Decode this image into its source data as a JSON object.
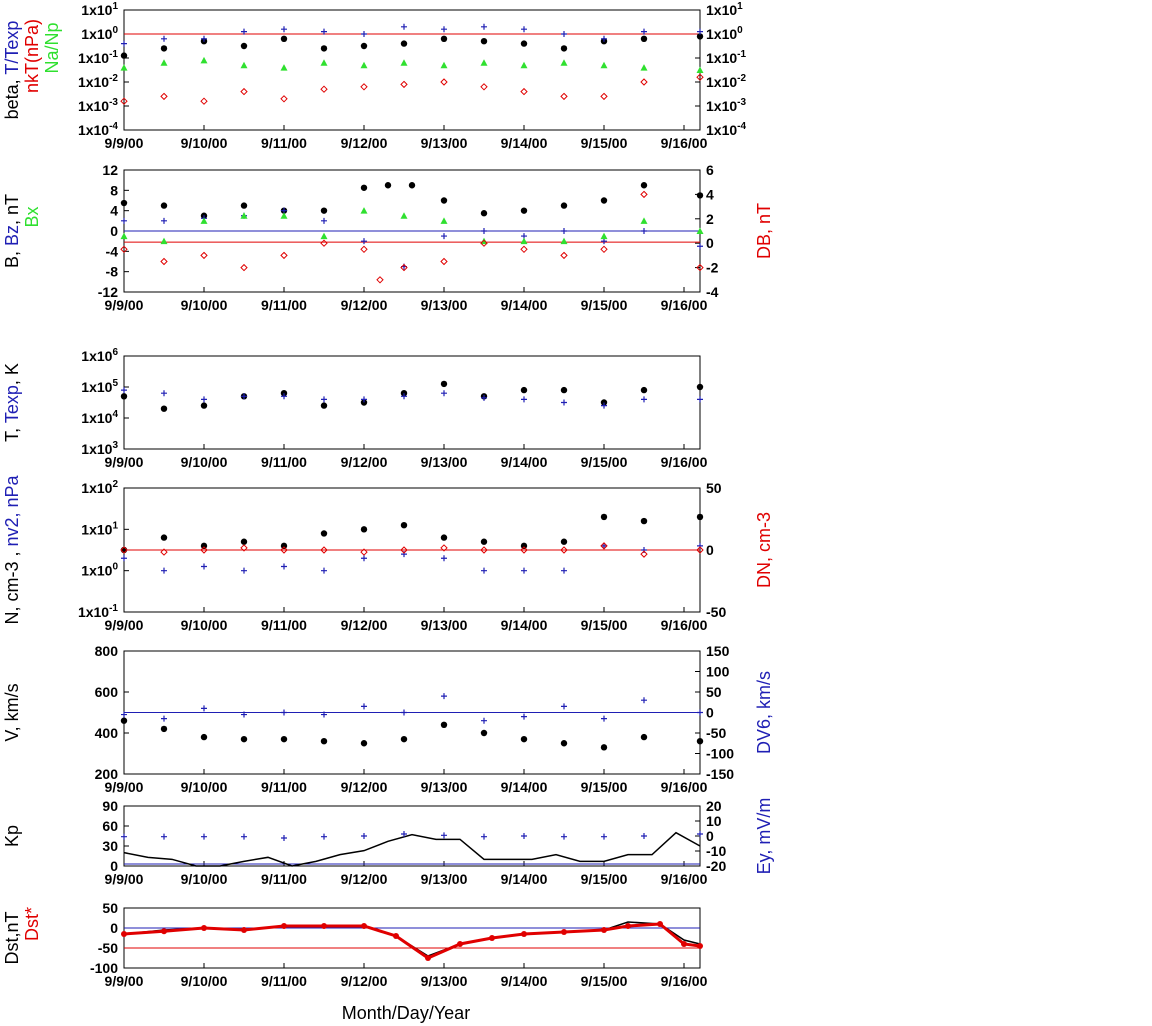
{
  "colors": {
    "black": "#000000",
    "blue": "#1f1fb4",
    "red": "#e00000",
    "green": "#2fe02f"
  },
  "x_axis": {
    "ticks": [
      "9/9/00",
      "9/10/00",
      "9/11/00",
      "9/12/00",
      "9/13/00",
      "9/14/00",
      "9/15/00",
      "9/16/00"
    ],
    "label": "Month/Day/Year"
  },
  "chart_data": [
    {
      "id": "p1",
      "type": "scatter",
      "ylog": true,
      "ylim": [
        -4,
        1
      ],
      "left_ticks": [
        "1x10-4",
        "1x10-3",
        "1x10-2",
        "1x10-1",
        "1x100",
        "1x101"
      ],
      "right_ticks": [
        "1x10-4",
        "1x10-3",
        "1x10-2",
        "1x10-1",
        "1x100",
        "1x101"
      ],
      "ylabel_left": [
        [
          "beta, ",
          "#000"
        ],
        [
          "T/Texp",
          "#1f1fb4"
        ]
      ],
      "ylabel_left2": [
        [
          "nkT(nPa)",
          "#e00000"
        ]
      ],
      "ylabel_left3": [
        [
          "Na/Np",
          "#2fe02f"
        ]
      ],
      "hlines": [
        {
          "y": 0,
          "color": "#e00000"
        }
      ],
      "series": [
        {
          "name": "beta",
          "color": "#000",
          "marker": "dot",
          "x": [
            0,
            0.5,
            1,
            1.5,
            2,
            2.5,
            3,
            3.5,
            4,
            4.5,
            5,
            5.5,
            6,
            6.5,
            7.2
          ],
          "y": [
            -0.9,
            -0.6,
            -0.3,
            -0.5,
            -0.2,
            -0.6,
            -0.5,
            -0.4,
            -0.2,
            -0.3,
            -0.4,
            -0.6,
            -0.3,
            -0.2,
            -0.1
          ]
        },
        {
          "name": "T/Texp",
          "color": "#1f1fb4",
          "marker": "plus",
          "x": [
            0,
            0.5,
            1,
            1.5,
            2,
            2.5,
            3,
            3.5,
            4,
            4.5,
            5,
            5.5,
            6,
            6.5,
            7.2
          ],
          "y": [
            -0.4,
            -0.2,
            -0.2,
            0.1,
            0.2,
            0.1,
            0.0,
            0.3,
            0.2,
            0.3,
            0.2,
            0.0,
            -0.2,
            0.1,
            0.1
          ]
        },
        {
          "name": "Na/Np",
          "color": "#2fe02f",
          "marker": "tri",
          "x": [
            0,
            0.5,
            1,
            1.5,
            2,
            2.5,
            3,
            3.5,
            4,
            4.5,
            5,
            5.5,
            6,
            6.5,
            7.2
          ],
          "y": [
            -1.4,
            -1.2,
            -1.1,
            -1.3,
            -1.4,
            -1.2,
            -1.3,
            -1.2,
            -1.3,
            -1.2,
            -1.3,
            -1.2,
            -1.3,
            -1.4,
            -1.5
          ]
        },
        {
          "name": "nkT",
          "color": "#e00000",
          "marker": "diamond",
          "x": [
            0,
            0.5,
            1,
            1.5,
            2,
            2.5,
            3,
            3.5,
            4,
            4.5,
            5,
            5.5,
            6,
            6.5,
            7.2
          ],
          "y": [
            -2.8,
            -2.6,
            -2.8,
            -2.4,
            -2.7,
            -2.3,
            -2.2,
            -2.1,
            -2.0,
            -2.2,
            -2.4,
            -2.6,
            -2.6,
            -2.0,
            -1.8
          ]
        }
      ]
    },
    {
      "id": "p2",
      "type": "scatter",
      "ylim": [
        -12,
        12
      ],
      "y2lim": [
        -4,
        6
      ],
      "left_ticks": [
        "-12",
        "-8",
        "-4",
        "0",
        "4",
        "8",
        "12"
      ],
      "right_ticks": [
        "-4",
        "-2",
        "0",
        "2",
        "4",
        "6"
      ],
      "ylabel_left": [
        [
          "B, ",
          "#000"
        ],
        [
          "Bz",
          "#1f1fb4"
        ],
        [
          ", nT",
          "#000"
        ]
      ],
      "ylabel_left2": [
        [
          "Bx",
          "#2fe02f"
        ]
      ],
      "ylabel_right": [
        [
          "DB, nT",
          "#e00000"
        ]
      ],
      "hlines": [
        {
          "y": 0,
          "color": "#1f1fb4"
        },
        {
          "y": -2.2,
          "color": "#e00000"
        }
      ],
      "series": [
        {
          "name": "B",
          "color": "#000",
          "marker": "dot",
          "x": [
            0,
            0.5,
            1,
            1.5,
            2,
            2.5,
            3,
            3.3,
            3.6,
            4,
            4.5,
            5,
            5.5,
            6,
            6.5,
            7.2
          ],
          "y": [
            5.5,
            5,
            3,
            5,
            4,
            4,
            8.5,
            9,
            9,
            6,
            3.5,
            4,
            5,
            6,
            9,
            7
          ]
        },
        {
          "name": "Bz",
          "color": "#1f1fb4",
          "marker": "plus",
          "x": [
            0,
            0.5,
            1,
            1.5,
            2,
            2.5,
            3,
            3.5,
            4,
            4.5,
            5,
            5.5,
            6,
            6.5,
            7.2
          ],
          "y": [
            2,
            2,
            2.5,
            3,
            4,
            2,
            -2,
            -7,
            -1,
            0,
            -1,
            0,
            -2,
            0,
            -3
          ]
        },
        {
          "name": "Bx",
          "color": "#2fe02f",
          "marker": "tri",
          "x": [
            0,
            0.5,
            1,
            1.5,
            2,
            2.5,
            3,
            3.5,
            4,
            4.5,
            5,
            5.5,
            6,
            6.5,
            7.2
          ],
          "y": [
            -1,
            -2,
            2,
            3,
            3,
            -1,
            4,
            3,
            2,
            -2,
            -2,
            -2,
            -1,
            2,
            0
          ]
        },
        {
          "name": "DB",
          "color": "#e00000",
          "marker": "diamond",
          "axis": "y2",
          "x": [
            0,
            0.5,
            1,
            1.5,
            2,
            2.5,
            3,
            3.2,
            3.5,
            4,
            4.5,
            5,
            5.5,
            6,
            6.5,
            7.2
          ],
          "y": [
            -0.5,
            -1.5,
            -1,
            -2,
            -1,
            0,
            -0.5,
            -3,
            -2,
            -1.5,
            0,
            -0.5,
            -1,
            -0.5,
            4,
            -2
          ]
        }
      ]
    },
    {
      "id": "p3",
      "type": "scatter",
      "ylog": true,
      "ylim": [
        3,
        6
      ],
      "left_ticks": [
        "1x103",
        "1x104",
        "1x105",
        "1x106"
      ],
      "ylabel_left": [
        [
          "T, ",
          "#000"
        ],
        [
          "Texp",
          "#1f1fb4"
        ],
        [
          ", K",
          "#000"
        ]
      ],
      "series": [
        {
          "name": "T",
          "color": "#000",
          "marker": "dot",
          "x": [
            0,
            0.5,
            1,
            1.5,
            2,
            2.5,
            3,
            3.5,
            4,
            4.5,
            5,
            5.5,
            6,
            6.5,
            7.2
          ],
          "y": [
            4.7,
            4.3,
            4.4,
            4.7,
            4.8,
            4.4,
            4.5,
            4.8,
            5.1,
            4.7,
            4.9,
            4.9,
            4.5,
            4.9,
            5.0
          ]
        },
        {
          "name": "Texp",
          "color": "#1f1fb4",
          "marker": "plus",
          "x": [
            0,
            0.5,
            1,
            1.5,
            2,
            2.5,
            3,
            3.5,
            4,
            4.5,
            5,
            5.5,
            6,
            6.5,
            7.2
          ],
          "y": [
            4.9,
            4.8,
            4.6,
            4.7,
            4.7,
            4.6,
            4.6,
            4.7,
            4.8,
            4.65,
            4.6,
            4.5,
            4.4,
            4.6,
            4.6
          ]
        }
      ]
    },
    {
      "id": "p4",
      "type": "scatter",
      "ylog": true,
      "ylim": [
        -1,
        2
      ],
      "y2lim": [
        -50,
        50
      ],
      "left_ticks": [
        "1x10-1",
        "1x100",
        "1x101",
        "1x102"
      ],
      "right_ticks": [
        "-50",
        "0",
        "50"
      ],
      "ylabel_left": [
        [
          "N, cm-3 , ",
          "#000"
        ],
        [
          "nv2, nPa",
          "#1f1fb4"
        ]
      ],
      "ylabel_right": [
        [
          "DN, cm-3",
          "#e00000"
        ]
      ],
      "hlines": [
        {
          "y": 0.5,
          "color": "#e00000"
        }
      ],
      "series": [
        {
          "name": "N",
          "color": "#000",
          "marker": "dot",
          "x": [
            0,
            0.5,
            1,
            1.5,
            2,
            2.5,
            3,
            3.5,
            4,
            4.5,
            5,
            5.5,
            6,
            6.5,
            7.2
          ],
          "y": [
            0.5,
            0.8,
            0.6,
            0.7,
            0.6,
            0.9,
            1.0,
            1.1,
            0.8,
            0.7,
            0.6,
            0.7,
            1.3,
            1.2,
            1.3
          ]
        },
        {
          "name": "nv2",
          "color": "#1f1fb4",
          "marker": "plus",
          "x": [
            0,
            0.5,
            1,
            1.5,
            2,
            2.5,
            3,
            3.5,
            4,
            4.5,
            5,
            5.5,
            6,
            6.5,
            7.2
          ],
          "y": [
            0.3,
            0.0,
            0.1,
            0.0,
            0.1,
            0.0,
            0.3,
            0.4,
            0.3,
            0.0,
            0.0,
            0.0,
            0.6,
            0.5,
            0.6
          ]
        },
        {
          "name": "DN",
          "color": "#e00000",
          "marker": "diamond",
          "x": [
            0,
            0.5,
            1,
            1.5,
            2,
            2.5,
            3,
            3.5,
            4,
            4.5,
            5,
            5.5,
            6,
            6.5,
            7.2
          ],
          "y": [
            0.5,
            0.45,
            0.5,
            0.55,
            0.5,
            0.5,
            0.45,
            0.5,
            0.55,
            0.5,
            0.5,
            0.5,
            0.6,
            0.4,
            0.5
          ]
        }
      ]
    },
    {
      "id": "p5",
      "type": "scatter",
      "ylim": [
        200,
        800
      ],
      "y2lim": [
        -150,
        150
      ],
      "left_ticks": [
        "200",
        "400",
        "600",
        "800"
      ],
      "right_ticks": [
        "-150",
        "-100",
        "-50",
        "0",
        "50",
        "100",
        "150"
      ],
      "ylabel_left": [
        [
          "V, km/s",
          "#000"
        ]
      ],
      "ylabel_right": [
        [
          "DV6, km/s",
          "#1f1fb4"
        ]
      ],
      "hlines": [
        {
          "y": 500,
          "color": "#1f1fb4"
        }
      ],
      "series": [
        {
          "name": "V",
          "color": "#000",
          "marker": "dot",
          "x": [
            0,
            0.5,
            1,
            1.5,
            2,
            2.5,
            3,
            3.5,
            4,
            4.5,
            5,
            5.5,
            6,
            6.5,
            7.2
          ],
          "y": [
            460,
            420,
            380,
            370,
            370,
            360,
            350,
            370,
            440,
            400,
            370,
            350,
            330,
            380,
            360
          ]
        },
        {
          "name": "DV6",
          "color": "#1f1fb4",
          "marker": "plus",
          "axis": "y2",
          "x": [
            0,
            0.5,
            1,
            1.5,
            2,
            2.5,
            3,
            3.5,
            4,
            4.5,
            5,
            5.5,
            6,
            6.5,
            7.2
          ],
          "y": [
            -5,
            -15,
            10,
            -5,
            0,
            -5,
            15,
            0,
            40,
            -20,
            -10,
            15,
            -15,
            30,
            0
          ]
        }
      ]
    },
    {
      "id": "p6",
      "type": "line",
      "ylim": [
        0,
        90
      ],
      "y2lim": [
        -20,
        20
      ],
      "left_ticks": [
        "0",
        "30",
        "60",
        "90"
      ],
      "right_ticks": [
        "-20",
        "-10",
        "0",
        "10",
        "20"
      ],
      "ylabel_left": [
        [
          "Kp",
          "#000"
        ]
      ],
      "ylabel_right": [
        [
          "Ey, mV/m",
          "#1f1fb4"
        ]
      ],
      "hlines": [
        {
          "y": 3,
          "color": "#1f1fb4"
        }
      ],
      "series": [
        {
          "name": "Kp",
          "color": "#000",
          "marker": "line",
          "x": [
            0,
            0.3,
            0.6,
            0.9,
            1.2,
            1.5,
            1.8,
            2.1,
            2.4,
            2.7,
            3,
            3.3,
            3.6,
            3.9,
            4.2,
            4.5,
            4.8,
            5.1,
            5.4,
            5.7,
            6,
            6.3,
            6.6,
            6.9,
            7.2
          ],
          "y": [
            20,
            13,
            10,
            0,
            0,
            7,
            13,
            0,
            7,
            17,
            23,
            37,
            47,
            40,
            40,
            10,
            10,
            10,
            17,
            7,
            7,
            17,
            17,
            50,
            30
          ]
        },
        {
          "name": "Ey",
          "color": "#1f1fb4",
          "marker": "plus",
          "x": [
            0,
            0.5,
            1,
            1.5,
            2,
            2.5,
            3,
            3.5,
            4,
            4.5,
            5,
            5.5,
            6,
            6.5,
            7.2
          ],
          "y": [
            44,
            44,
            44,
            44,
            42,
            44,
            45,
            48,
            46,
            44,
            45,
            44,
            44,
            45,
            48
          ]
        }
      ]
    },
    {
      "id": "p7",
      "type": "line",
      "ylim": [
        -100,
        50
      ],
      "left_ticks": [
        "-100",
        "-50",
        "0",
        "50"
      ],
      "ylabel_left": [
        [
          "Dst,nT",
          "#000"
        ]
      ],
      "ylabel_left2": [
        [
          "Dst*",
          "#e00000"
        ]
      ],
      "hlines": [
        {
          "y": 0,
          "color": "#1f1fb4"
        },
        {
          "y": -50,
          "color": "#e00000"
        }
      ],
      "series": [
        {
          "name": "Dst",
          "color": "#000",
          "marker": "line",
          "x": [
            0,
            0.5,
            1,
            1.5,
            2,
            2.5,
            3,
            3.4,
            3.8,
            4.2,
            4.6,
            5,
            5.5,
            6,
            6.3,
            6.7,
            7,
            7.2
          ],
          "y": [
            -15,
            -5,
            0,
            -5,
            5,
            5,
            5,
            -20,
            -70,
            -40,
            -25,
            -15,
            -10,
            -5,
            15,
            10,
            -30,
            -40
          ]
        },
        {
          "name": "Dst*",
          "color": "#e00000",
          "marker": "dotline",
          "x": [
            0,
            0.5,
            1,
            1.5,
            2,
            2.5,
            3,
            3.4,
            3.8,
            4.2,
            4.6,
            5,
            5.5,
            6,
            6.3,
            6.7,
            7,
            7.2
          ],
          "y": [
            -15,
            -8,
            0,
            -5,
            5,
            5,
            5,
            -20,
            -75,
            -40,
            -25,
            -15,
            -10,
            -5,
            5,
            10,
            -40,
            -45
          ]
        }
      ]
    }
  ]
}
